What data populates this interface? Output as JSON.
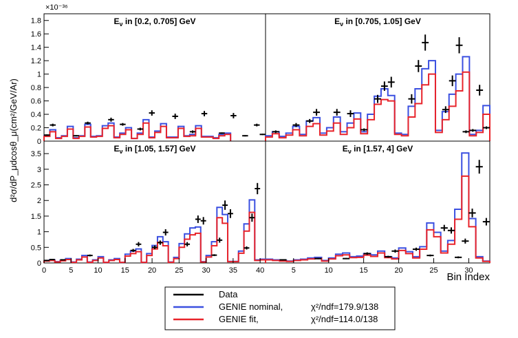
{
  "chart_data": [
    {
      "type": "step",
      "panel": "top-left",
      "title": "E_ν in [0.2, 0.705] GeV",
      "x_range": [
        0,
        38
      ],
      "ylim": [
        0,
        1.9
      ],
      "y_scale_label": "×10⁻³⁶",
      "yticks": [
        0,
        0.2,
        0.4,
        0.6,
        0.8,
        1,
        1.2,
        1.4,
        1.6,
        1.8
      ],
      "series": [
        {
          "name": "GENIE nominal",
          "color": "#3a4fe0",
          "values": [
            0.08,
            0.17,
            0.05,
            0.08,
            0.22,
            0.05,
            0.08,
            0.25,
            0.07,
            0.08,
            0.23,
            0.27,
            0.06,
            0.12,
            0.2,
            0.04,
            0.12,
            0.32,
            0.06,
            0.15,
            0.26,
            0.06,
            0.06,
            0.22,
            0.08,
            0.1,
            0.23,
            0.07,
            0.07,
            0.05,
            0.1,
            0.12
          ]
        },
        {
          "name": "GENIE fit",
          "color": "#e8232a",
          "values": [
            0.07,
            0.14,
            0.04,
            0.07,
            0.18,
            0.04,
            0.07,
            0.21,
            0.06,
            0.07,
            0.19,
            0.23,
            0.05,
            0.1,
            0.17,
            0.04,
            0.1,
            0.27,
            0.05,
            0.13,
            0.22,
            0.05,
            0.05,
            0.19,
            0.07,
            0.08,
            0.19,
            0.06,
            0.06,
            0.04,
            0.08,
            0.1
          ]
        },
        {
          "name": "Data",
          "color": "#000000",
          "points": [
            [
              1.5,
              0.24,
              0.02
            ],
            [
              7.5,
              0.27,
              0.02
            ],
            [
              11.5,
              0.32,
              0.03
            ],
            [
              13.5,
              0.25,
              0.02
            ],
            [
              16.5,
              0.18,
              0.02
            ],
            [
              18.5,
              0.42,
              0.04
            ],
            [
              22.5,
              0.37,
              0.04
            ],
            [
              27.5,
              0.41,
              0.04
            ],
            [
              32.5,
              0.38,
              0.04
            ],
            [
              36.5,
              0.24,
              0.02
            ],
            [
              0.5,
              0.09,
              0.01
            ],
            [
              5.5,
              0.08,
              0.01
            ],
            [
              25.5,
              0.14,
              0.02
            ],
            [
              30.5,
              0.12,
              0.01
            ],
            [
              34.5,
              0.08,
              0.01
            ],
            [
              37.5,
              0.1,
              0.01
            ]
          ]
        }
      ]
    },
    {
      "type": "step",
      "panel": "top-right",
      "title": "E_ν in [0.705, 1.05] GeV",
      "x_range": [
        0,
        33
      ],
      "ylim": [
        0,
        1.9
      ],
      "series": [
        {
          "name": "GENIE nominal",
          "color": "#3a4fe0",
          "values": [
            0.08,
            0.14,
            0.07,
            0.12,
            0.22,
            0.1,
            0.3,
            0.35,
            0.12,
            0.2,
            0.36,
            0.14,
            0.27,
            0.42,
            0.14,
            0.4,
            0.67,
            0.78,
            0.68,
            0.12,
            0.1,
            0.52,
            0.78,
            1.08,
            1.2,
            0.16,
            0.44,
            0.7,
            1.0,
            1.26,
            0.1,
            0.16,
            0.53
          ]
        },
        {
          "name": "GENIE fit",
          "color": "#e8232a",
          "values": [
            0.06,
            0.11,
            0.05,
            0.09,
            0.17,
            0.08,
            0.22,
            0.26,
            0.09,
            0.15,
            0.27,
            0.1,
            0.2,
            0.33,
            0.11,
            0.32,
            0.55,
            0.62,
            0.6,
            0.1,
            0.08,
            0.36,
            0.56,
            0.84,
            1.0,
            0.13,
            0.32,
            0.52,
            0.75,
            1.03,
            0.08,
            0.13,
            0.4
          ]
        },
        {
          "name": "Data",
          "color": "#000000",
          "points": [
            [
              1.5,
              0.14,
              0.02
            ],
            [
              4.5,
              0.24,
              0.03
            ],
            [
              6.5,
              0.3,
              0.03
            ],
            [
              7.5,
              0.43,
              0.05
            ],
            [
              10.5,
              0.43,
              0.05
            ],
            [
              12.5,
              0.41,
              0.05
            ],
            [
              14.5,
              0.17,
              0.02
            ],
            [
              16.5,
              0.63,
              0.06
            ],
            [
              17.5,
              0.82,
              0.07
            ],
            [
              18.5,
              0.88,
              0.08
            ],
            [
              21.5,
              0.63,
              0.07
            ],
            [
              22.5,
              1.12,
              0.09
            ],
            [
              23.5,
              1.47,
              0.12
            ],
            [
              26.5,
              0.47,
              0.05
            ],
            [
              27.5,
              0.9,
              0.08
            ],
            [
              28.5,
              1.43,
              0.12
            ],
            [
              29.5,
              0.14,
              0.02
            ],
            [
              30.5,
              0.16,
              0.02
            ],
            [
              31.5,
              0.76,
              0.08
            ],
            [
              32.5,
              0.2,
              0.02
            ]
          ]
        }
      ]
    },
    {
      "type": "step",
      "panel": "bottom-left",
      "title": "E_ν in [1.05, 1.57] GeV",
      "x_range": [
        0,
        41
      ],
      "ylim": [
        0,
        3.9
      ],
      "xticks": [
        0,
        5,
        10,
        15,
        20,
        25,
        30,
        35,
        40
      ],
      "yticks": [
        0,
        0.5,
        1,
        1.5,
        2,
        2.5,
        3,
        3.5
      ],
      "series": [
        {
          "name": "GENIE nominal",
          "color": "#3a4fe0",
          "values": [
            0.07,
            0.1,
            0.04,
            0.09,
            0.14,
            0.03,
            0.12,
            0.24,
            0.03,
            0.1,
            0.2,
            0.02,
            0.1,
            0.14,
            0.02,
            0.28,
            0.38,
            0.45,
            0.02,
            0.3,
            0.56,
            0.84,
            0.68,
            0.03,
            0.18,
            0.62,
            0.93,
            1.12,
            1.15,
            0.04,
            0.24,
            0.68,
            1.78,
            1.55,
            0.05,
            0.05,
            0.38,
            1.25,
            2.02,
            0.1,
            0.12
          ]
        },
        {
          "name": "GENIE fit",
          "color": "#e8232a",
          "values": [
            0.06,
            0.08,
            0.03,
            0.07,
            0.11,
            0.02,
            0.1,
            0.19,
            0.02,
            0.08,
            0.16,
            0.02,
            0.08,
            0.11,
            0.02,
            0.22,
            0.3,
            0.36,
            0.02,
            0.24,
            0.45,
            0.66,
            0.55,
            0.02,
            0.14,
            0.5,
            0.76,
            0.9,
            0.95,
            0.03,
            0.19,
            0.55,
            1.45,
            1.27,
            0.04,
            0.04,
            0.31,
            1.02,
            1.62,
            0.08,
            0.1
          ]
        },
        {
          "name": "Data",
          "color": "#000000",
          "points": [
            [
              0.5,
              0.08,
              0.02
            ],
            [
              1.5,
              0.11,
              0.02
            ],
            [
              3.5,
              0.1,
              0.02
            ],
            [
              8.5,
              0.24,
              0.03
            ],
            [
              16.5,
              0.4,
              0.05
            ],
            [
              17.5,
              0.6,
              0.07
            ],
            [
              20.5,
              0.5,
              0.06
            ],
            [
              21.5,
              0.65,
              0.07
            ],
            [
              22.5,
              0.98,
              0.1
            ],
            [
              26.5,
              0.6,
              0.07
            ],
            [
              28.5,
              1.4,
              0.12
            ],
            [
              29.5,
              1.35,
              0.12
            ],
            [
              31.5,
              0.25,
              0.03
            ],
            [
              32.5,
              0.73,
              0.08
            ],
            [
              33.5,
              1.85,
              0.15
            ],
            [
              34.5,
              1.58,
              0.14
            ],
            [
              37.5,
              0.48,
              0.05
            ],
            [
              38.5,
              1.45,
              0.13
            ],
            [
              39.5,
              2.38,
              0.18
            ]
          ]
        }
      ]
    },
    {
      "type": "step",
      "panel": "bottom-right",
      "title": "E_ν in [1.57, 4] GeV",
      "x_range": [
        1,
        33
      ],
      "ylim": [
        0,
        3.9
      ],
      "xticks": [
        5,
        10,
        15,
        20,
        25,
        30
      ],
      "xlabel": "Bin Index",
      "series": [
        {
          "name": "GENIE nominal",
          "color": "#3a4fe0",
          "values": [
            0.12,
            0.1,
            0.08,
            0.06,
            0.1,
            0.12,
            0.16,
            0.18,
            0.08,
            0.16,
            0.28,
            0.32,
            0.2,
            0.22,
            0.3,
            0.26,
            0.38,
            0.2,
            0.16,
            0.48,
            0.36,
            0.2,
            0.52,
            1.28,
            0.98,
            0.38,
            0.72,
            1.72,
            3.52,
            1.42,
            0.2,
            0.06
          ]
        },
        {
          "name": "GENIE fit",
          "color": "#e8232a",
          "values": [
            0.1,
            0.08,
            0.06,
            0.05,
            0.08,
            0.1,
            0.13,
            0.14,
            0.06,
            0.13,
            0.23,
            0.26,
            0.17,
            0.18,
            0.25,
            0.21,
            0.32,
            0.17,
            0.13,
            0.4,
            0.3,
            0.16,
            0.44,
            1.06,
            0.84,
            0.32,
            0.6,
            1.4,
            2.78,
            1.16,
            0.16,
            0.05
          ]
        },
        {
          "name": "Data",
          "color": "#000000",
          "points": [
            [
              3.5,
              0.1,
              0.02
            ],
            [
              8.5,
              0.14,
              0.02
            ],
            [
              12.5,
              0.14,
              0.02
            ],
            [
              15.5,
              0.3,
              0.04
            ],
            [
              18.5,
              0.2,
              0.03
            ],
            [
              19.5,
              0.38,
              0.05
            ],
            [
              22.5,
              0.44,
              0.05
            ],
            [
              24.5,
              0.24,
              0.03
            ],
            [
              26.5,
              1.12,
              0.1
            ],
            [
              27.5,
              1.04,
              0.1
            ],
            [
              28.5,
              0.18,
              0.03
            ],
            [
              29.5,
              0.7,
              0.08
            ],
            [
              30.5,
              1.6,
              0.14
            ],
            [
              31.5,
              3.08,
              0.22
            ],
            [
              32.5,
              1.32,
              0.12
            ]
          ]
        }
      ]
    }
  ],
  "axes": {
    "ylabel": "d²σ/dP_μdcosθ_μ(cm²/GeV/Ar)",
    "y_exponent": "×10⁻³⁶",
    "xlabel": "Bin Index"
  },
  "legend": {
    "placement": "bottom-center",
    "entries": [
      {
        "label": "Data",
        "color": "#000000",
        "chi2": ""
      },
      {
        "label": "GENIE nominal,",
        "color": "#3a4fe0",
        "chi2": "χ²/ndf=179.9/138"
      },
      {
        "label": "GENIE fit,",
        "color": "#e8232a",
        "chi2": "χ²/ndf=114.0/138"
      }
    ]
  }
}
